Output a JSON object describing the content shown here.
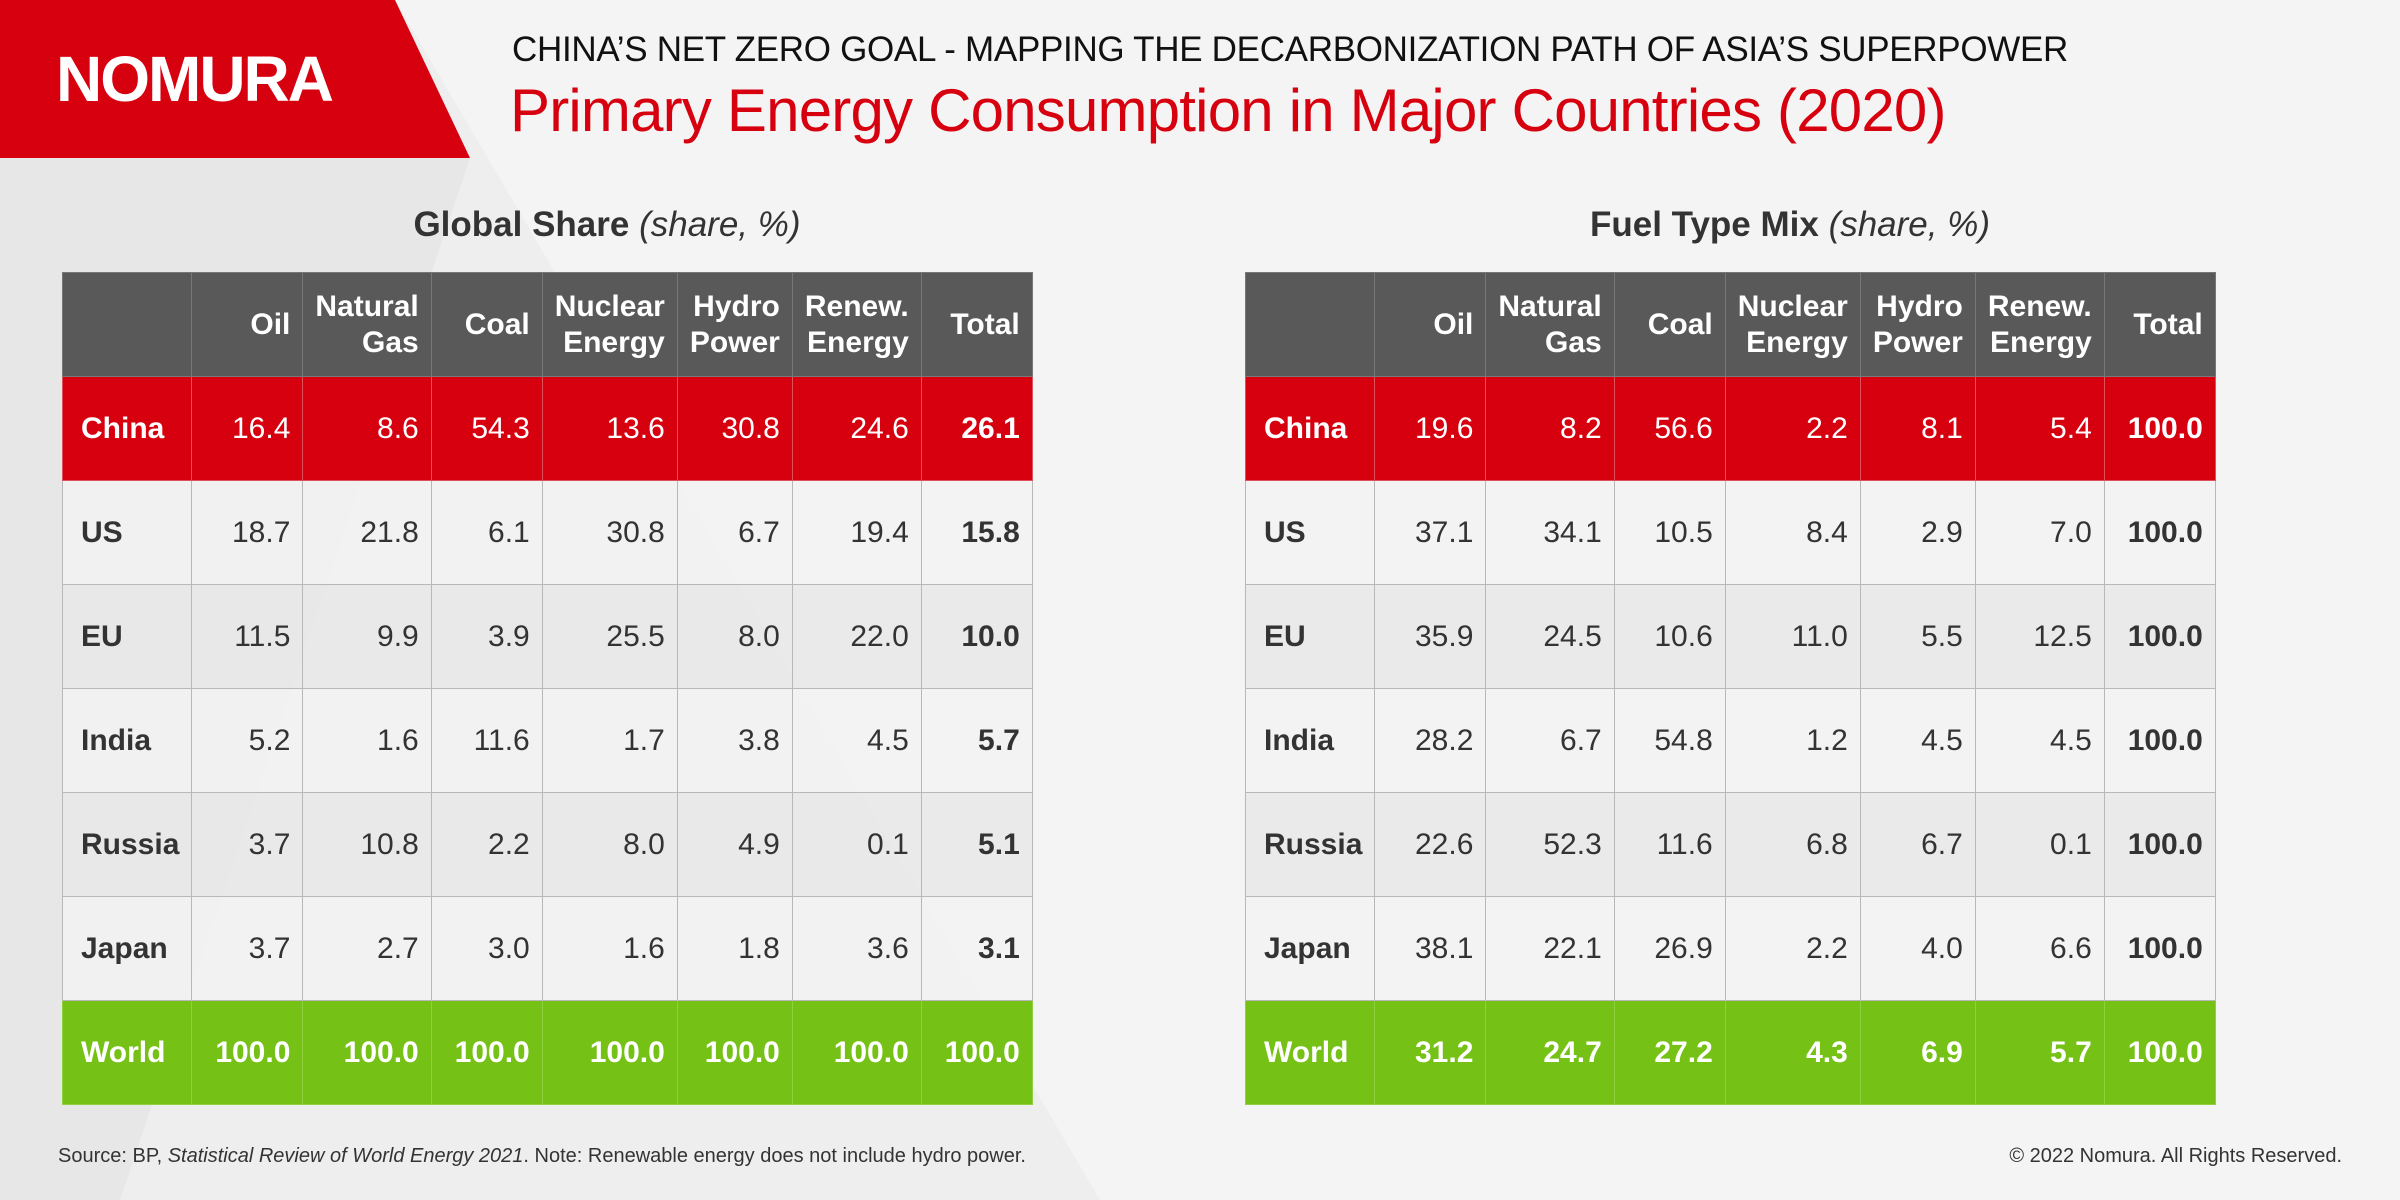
{
  "brand": {
    "logo_text": "NOMURA",
    "accent": "#d7000f",
    "green": "#76c116",
    "header_gray": "#595959"
  },
  "header": {
    "subtitle": "CHINA’S NET ZERO GOAL - MAPPING THE DECARBONIZATION PATH OF ASIA’S SUPERPOWER",
    "title": "Primary Energy Consumption in Major Countries (2020)"
  },
  "chart_data": [
    {
      "type": "table",
      "title": "Global Share",
      "title_unit": "(share, %)",
      "columns": [
        {
          "line1": "",
          "line2": ""
        },
        {
          "line1": "",
          "line2": "Oil"
        },
        {
          "line1": "Natural",
          "line2": "Gas"
        },
        {
          "line1": "",
          "line2": "Coal"
        },
        {
          "line1": "Nuclear",
          "line2": "Energy"
        },
        {
          "line1": "Hydro",
          "line2": "Power"
        },
        {
          "line1": "Renew.",
          "line2": "Energy"
        },
        {
          "line1": "",
          "line2": "Total"
        }
      ],
      "rows": [
        {
          "label": "China",
          "values": [
            "16.4",
            "8.6",
            "54.3",
            "13.6",
            "30.8",
            "24.6",
            "26.1"
          ]
        },
        {
          "label": "US",
          "values": [
            "18.7",
            "21.8",
            "6.1",
            "30.8",
            "6.7",
            "19.4",
            "15.8"
          ]
        },
        {
          "label": "EU",
          "values": [
            "11.5",
            "9.9",
            "3.9",
            "25.5",
            "8.0",
            "22.0",
            "10.0"
          ]
        },
        {
          "label": "India",
          "values": [
            "5.2",
            "1.6",
            "11.6",
            "1.7",
            "3.8",
            "4.5",
            "5.7"
          ]
        },
        {
          "label": "Russia",
          "values": [
            "3.7",
            "10.8",
            "2.2",
            "8.0",
            "4.9",
            "0.1",
            "5.1"
          ]
        },
        {
          "label": "Japan",
          "values": [
            "3.7",
            "2.7",
            "3.0",
            "1.6",
            "1.8",
            "3.6",
            "3.1"
          ]
        },
        {
          "label": "World",
          "values": [
            "100.0",
            "100.0",
            "100.0",
            "100.0",
            "100.0",
            "100.0",
            "100.0"
          ]
        }
      ]
    },
    {
      "type": "table",
      "title": "Fuel Type Mix",
      "title_unit": "(share, %)",
      "columns": [
        {
          "line1": "",
          "line2": ""
        },
        {
          "line1": "",
          "line2": "Oil"
        },
        {
          "line1": "Natural",
          "line2": "Gas"
        },
        {
          "line1": "",
          "line2": "Coal"
        },
        {
          "line1": "Nuclear",
          "line2": "Energy"
        },
        {
          "line1": "Hydro",
          "line2": "Power"
        },
        {
          "line1": "Renew.",
          "line2": "Energy"
        },
        {
          "line1": "",
          "line2": "Total"
        }
      ],
      "rows": [
        {
          "label": "China",
          "values": [
            "19.6",
            "8.2",
            "56.6",
            "2.2",
            "8.1",
            "5.4",
            "100.0"
          ]
        },
        {
          "label": "US",
          "values": [
            "37.1",
            "34.1",
            "10.5",
            "8.4",
            "2.9",
            "7.0",
            "100.0"
          ]
        },
        {
          "label": "EU",
          "values": [
            "35.9",
            "24.5",
            "10.6",
            "11.0",
            "5.5",
            "12.5",
            "100.0"
          ]
        },
        {
          "label": "India",
          "values": [
            "28.2",
            "6.7",
            "54.8",
            "1.2",
            "4.5",
            "4.5",
            "100.0"
          ]
        },
        {
          "label": "Russia",
          "values": [
            "22.6",
            "52.3",
            "11.6",
            "6.8",
            "6.7",
            "0.1",
            "100.0"
          ]
        },
        {
          "label": "Japan",
          "values": [
            "38.1",
            "22.1",
            "26.9",
            "2.2",
            "4.0",
            "6.6",
            "100.0"
          ]
        },
        {
          "label": "World",
          "values": [
            "31.2",
            "24.7",
            "27.2",
            "4.3",
            "6.9",
            "5.7",
            "100.0"
          ]
        }
      ]
    }
  ],
  "footer": {
    "source_prefix": "Source: BP, ",
    "source_title": "Statistical Review of World Energy 2021",
    "source_suffix": ". Note: Renewable energy does not include hydro power.",
    "copyright": "© 2022 Nomura. All Rights Reserved."
  }
}
